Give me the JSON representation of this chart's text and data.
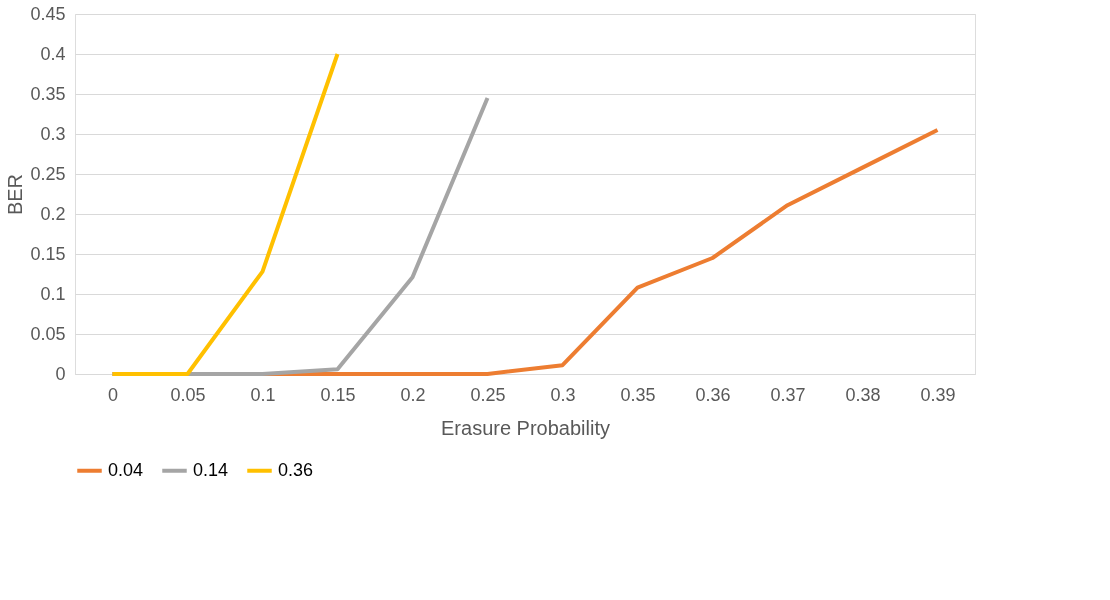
{
  "chart_data": {
    "type": "line",
    "xlabel": "Erasure Probability",
    "ylabel": "BER",
    "categories": [
      "0",
      "0.05",
      "0.1",
      "0.15",
      "0.2",
      "0.25",
      "0.3",
      "0.35",
      "0.36",
      "0.37",
      "0.38",
      "0.39"
    ],
    "series": [
      {
        "name": "0.04",
        "color": "#ed7d31",
        "values": [
          0,
          0,
          0,
          0,
          0,
          0,
          0.011,
          0.108,
          0.145,
          0.211,
          0.258,
          0.305
        ]
      },
      {
        "name": "0.14",
        "color": "#a5a5a5",
        "values": [
          0,
          0,
          0,
          0.006,
          0.121,
          0.345,
          null,
          null,
          null,
          null,
          null,
          null
        ]
      },
      {
        "name": "0.36",
        "color": "#ffc000",
        "values": [
          0,
          0,
          0.128,
          0.4,
          null,
          null,
          null,
          null,
          null,
          null,
          null,
          null
        ]
      }
    ],
    "ylim": [
      0,
      0.45
    ],
    "yticks": [
      0,
      0.05,
      0.1,
      0.15,
      0.2,
      0.25,
      0.3,
      0.35,
      0.4,
      0.45
    ],
    "grid": "y",
    "legend": "bottom",
    "marker": "none",
    "line_style": "solid"
  }
}
